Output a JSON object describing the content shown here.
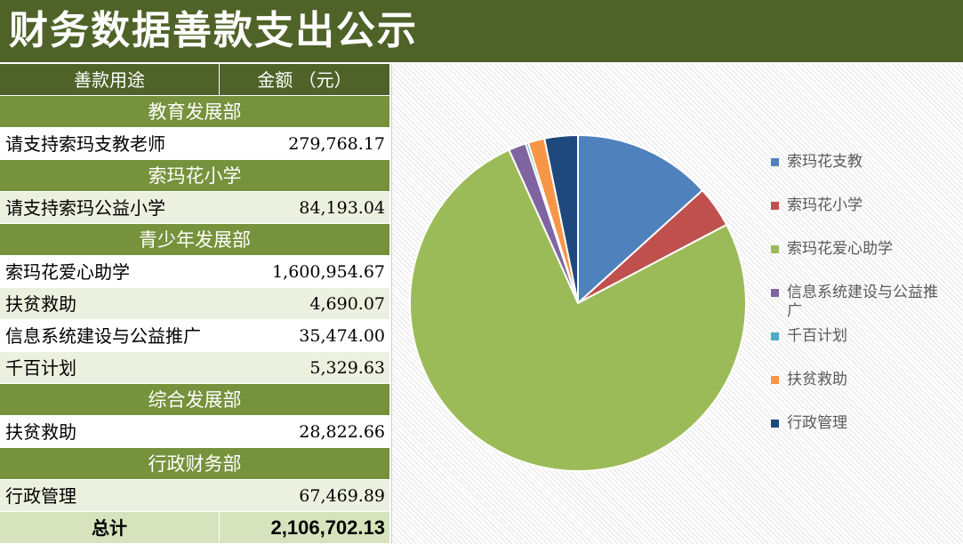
{
  "title": "财务数据善款支出公示",
  "table": {
    "header": {
      "purpose": "善款用途",
      "amount": "金额 （元）"
    },
    "sections": [
      {
        "name": "教育发展部",
        "items": [
          {
            "label": "请支持索玛支教老师",
            "amount": "279,768.17"
          }
        ]
      },
      {
        "name": "索玛花小学",
        "items": [
          {
            "label": "请支持索玛公益小学",
            "amount": "84,193.04"
          }
        ]
      },
      {
        "name": "青少年发展部",
        "items": [
          {
            "label": "索玛花爱心助学",
            "amount": "1,600,954.67"
          },
          {
            "label": "扶贫救助",
            "amount": "4,690.07"
          },
          {
            "label": "信息系统建设与公益推广",
            "amount": "35,474.00"
          },
          {
            "label": "千百计划",
            "amount": "5,329.63"
          }
        ]
      },
      {
        "name": "综合发展部",
        "items": [
          {
            "label": "扶贫救助",
            "amount": "28,822.66"
          }
        ]
      },
      {
        "name": "行政财务部",
        "items": [
          {
            "label": "行政管理",
            "amount": "67,469.89"
          }
        ]
      }
    ],
    "total": {
      "label": "总计",
      "amount": "2,106,702.13"
    }
  },
  "chart_data": {
    "type": "pie",
    "series": [
      {
        "name": "索玛花支教",
        "value": 279768.17,
        "color": "#4f81bd"
      },
      {
        "name": "索玛花小学",
        "value": 84193.04,
        "color": "#c0504d"
      },
      {
        "name": "索玛花爱心助学",
        "value": 1600954.67,
        "color": "#9bbb59"
      },
      {
        "name": "信息系统建设与公益推广",
        "value": 35474.0,
        "color": "#8064a2"
      },
      {
        "name": "千百计划",
        "value": 5329.63,
        "color": "#4bacc6"
      },
      {
        "name": "扶贫救助",
        "value": 33512.73,
        "color": "#f79646"
      },
      {
        "name": "行政管理",
        "value": 67469.89,
        "color": "#1f497d"
      }
    ],
    "legend_position": "right"
  }
}
